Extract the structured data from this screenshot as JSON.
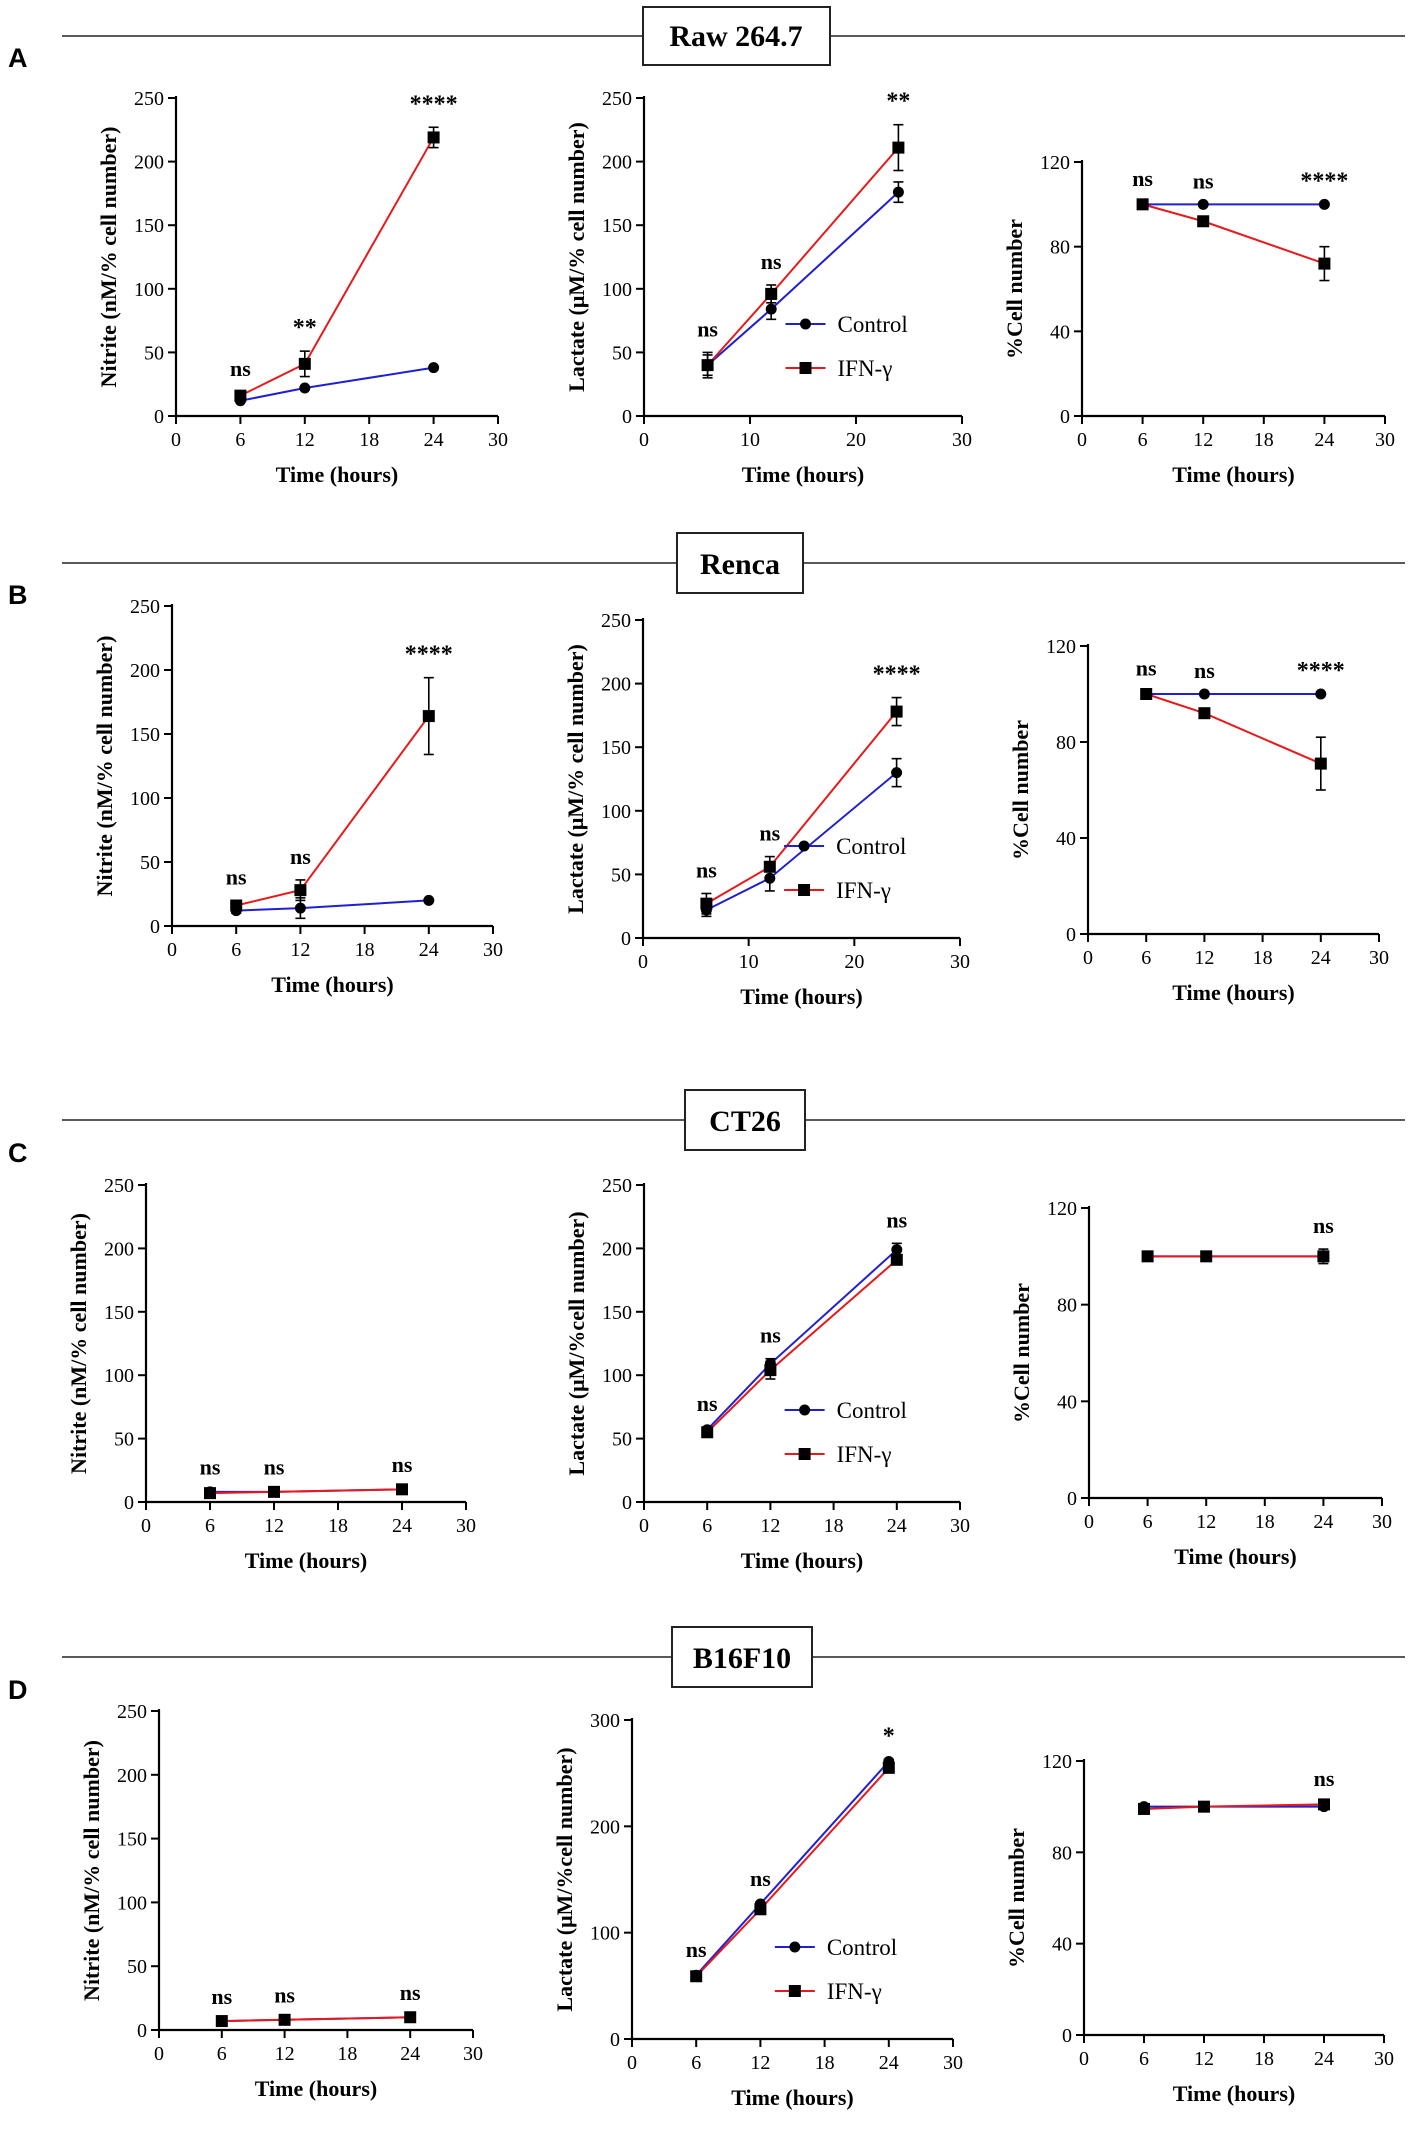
{
  "figure": {
    "colors": {
      "control": "#1f1fd6",
      "ifn": "#e8191b",
      "axis": "#000000"
    },
    "legend": {
      "control": "Control",
      "ifn": "IFN-γ"
    }
  },
  "sections": [
    {
      "letter": "A",
      "title": "Raw 264.7",
      "charts": [
        {
          "chart_data": {
            "type": "line",
            "ylabel": "Nitrite (nM/% cell number)",
            "xlabel": "Time (hours)",
            "xlim": [
              0,
              30
            ],
            "xticks": [
              0,
              6,
              12,
              18,
              24,
              30
            ],
            "ylim": [
              0,
              250
            ],
            "yticks": [
              0,
              50,
              100,
              150,
              200,
              250
            ],
            "x": [
              6,
              12,
              24
            ],
            "series": [
              {
                "name": "Control",
                "values": [
                  12,
                  22,
                  38
                ],
                "err": [
                  1,
                  1,
                  1
                ]
              },
              {
                "name": "IFN-γ",
                "values": [
                  16,
                  41,
                  219
                ],
                "err": [
                  3,
                  10,
                  8
                ]
              }
            ],
            "significance": [
              "ns",
              "**",
              "****"
            ],
            "legend": false
          }
        },
        {
          "chart_data": {
            "type": "line",
            "ylabel": "Lactate (μM/% cell number)",
            "xlabel": "Time (hours)",
            "xlim": [
              0,
              30
            ],
            "xticks": [
              0,
              10,
              20,
              30
            ],
            "ylim": [
              0,
              250
            ],
            "yticks": [
              0,
              50,
              100,
              150,
              200,
              250
            ],
            "x": [
              6,
              12,
              24
            ],
            "series": [
              {
                "name": "Control",
                "values": [
                  40,
                  84,
                  176
                ],
                "err": [
                  8,
                  8,
                  8
                ]
              },
              {
                "name": "IFN-γ",
                "values": [
                  40,
                  96,
                  211
                ],
                "err": [
                  10,
                  7,
                  18
                ]
              }
            ],
            "significance": [
              "ns",
              "ns",
              "**"
            ],
            "legend": true
          }
        },
        {
          "chart_data": {
            "type": "line",
            "ylabel": "%Cell number",
            "xlabel": "Time (hours)",
            "xlim": [
              0,
              30
            ],
            "xticks": [
              0,
              6,
              12,
              18,
              24,
              30
            ],
            "ylim": [
              0,
              120
            ],
            "yticks": [
              0,
              40,
              80,
              120
            ],
            "x": [
              6,
              12,
              24
            ],
            "series": [
              {
                "name": "Control",
                "values": [
                  100,
                  100,
                  100
                ],
                "err": [
                  0,
                  0,
                  0
                ]
              },
              {
                "name": "IFN-γ",
                "values": [
                  100,
                  92,
                  72
                ],
                "err": [
                  1,
                  2,
                  8
                ]
              }
            ],
            "significance": [
              "ns",
              "ns",
              "****"
            ],
            "legend": false
          }
        }
      ]
    },
    {
      "letter": "B",
      "title": "Renca",
      "charts": [
        {
          "chart_data": {
            "type": "line",
            "ylabel": "Nitrite (nM/% cell number)",
            "xlabel": "Time (hours)",
            "xlim": [
              0,
              30
            ],
            "xticks": [
              0,
              6,
              12,
              18,
              24,
              30
            ],
            "ylim": [
              0,
              250
            ],
            "yticks": [
              0,
              50,
              100,
              150,
              200,
              250
            ],
            "x": [
              6,
              12,
              24
            ],
            "series": [
              {
                "name": "Control",
                "values": [
                  12,
                  14,
                  20
                ],
                "err": [
                  2,
                  8,
                  1
                ]
              },
              {
                "name": "IFN-γ",
                "values": [
                  16,
                  28,
                  164
                ],
                "err": [
                  4,
                  8,
                  30
                ]
              }
            ],
            "significance": [
              "ns",
              "ns",
              "****"
            ],
            "legend": false
          }
        },
        {
          "chart_data": {
            "type": "line",
            "ylabel": "Lactate (μM/% cell number)",
            "xlabel": "Time (hours)",
            "xlim": [
              0,
              30
            ],
            "xticks": [
              0,
              10,
              20,
              30
            ],
            "ylim": [
              0,
              250
            ],
            "yticks": [
              0,
              50,
              100,
              150,
              200,
              250
            ],
            "x": [
              6,
              12,
              24
            ],
            "series": [
              {
                "name": "Control",
                "values": [
                  22,
                  47,
                  130
                ],
                "err": [
                  5,
                  10,
                  11
                ]
              },
              {
                "name": "IFN-γ",
                "values": [
                  27,
                  56,
                  178
                ],
                "err": [
                  8,
                  8,
                  11
                ]
              }
            ],
            "significance": [
              "ns",
              "ns",
              "****"
            ],
            "legend": true
          }
        },
        {
          "chart_data": {
            "type": "line",
            "ylabel": "%Cell number",
            "xlabel": "Time (hours)",
            "xlim": [
              0,
              30
            ],
            "xticks": [
              0,
              6,
              12,
              18,
              24,
              30
            ],
            "ylim": [
              0,
              120
            ],
            "yticks": [
              0,
              40,
              80,
              120
            ],
            "x": [
              6,
              12,
              24
            ],
            "series": [
              {
                "name": "Control",
                "values": [
                  100,
                  100,
                  100
                ],
                "err": [
                  0,
                  0,
                  0
                ]
              },
              {
                "name": "IFN-γ",
                "values": [
                  100,
                  92,
                  71
                ],
                "err": [
                  1,
                  2,
                  11
                ]
              }
            ],
            "significance": [
              "ns",
              "ns",
              "****"
            ],
            "legend": false
          }
        }
      ]
    },
    {
      "letter": "C",
      "title": "CT26",
      "charts": [
        {
          "chart_data": {
            "type": "line",
            "ylabel": "Nitrite (nM/% cell number)",
            "xlabel": "Time (hours)",
            "xlim": [
              0,
              30
            ],
            "xticks": [
              0,
              6,
              12,
              18,
              24,
              30
            ],
            "ylim": [
              0,
              250
            ],
            "yticks": [
              0,
              50,
              100,
              150,
              200,
              250
            ],
            "x": [
              6,
              12,
              24
            ],
            "series": [
              {
                "name": "Control",
                "values": [
                  8,
                  8,
                  10
                ],
                "err": [
                  1,
                  1,
                  1
                ]
              },
              {
                "name": "IFN-γ",
                "values": [
                  7,
                  8,
                  10
                ],
                "err": [
                  1,
                  1,
                  1
                ]
              }
            ],
            "significance": [
              "ns",
              "ns",
              "ns"
            ],
            "legend": false
          }
        },
        {
          "chart_data": {
            "type": "line",
            "ylabel": "Lactate (μM/%cell number)",
            "xlabel": "Time (hours)",
            "xlim": [
              0,
              30
            ],
            "xticks": [
              0,
              6,
              12,
              18,
              24,
              30
            ],
            "ylim": [
              0,
              250
            ],
            "yticks": [
              0,
              50,
              100,
              150,
              200,
              250
            ],
            "x": [
              6,
              12,
              24
            ],
            "series": [
              {
                "name": "Control",
                "values": [
                  57,
                  109,
                  199
                ],
                "err": [
                  2,
                  4,
                  5
                ]
              },
              {
                "name": "IFN-γ",
                "values": [
                  55,
                  104,
                  191
                ],
                "err": [
                  2,
                  7,
                  3
                ]
              }
            ],
            "significance": [
              "ns",
              "ns",
              "ns"
            ],
            "legend": true
          }
        },
        {
          "chart_data": {
            "type": "line",
            "ylabel": "%Cell number",
            "xlabel": "Time (hours)",
            "xlim": [
              0,
              30
            ],
            "xticks": [
              0,
              6,
              12,
              18,
              24,
              30
            ],
            "ylim": [
              0,
              120
            ],
            "yticks": [
              0,
              40,
              80,
              120
            ],
            "x": [
              6,
              12,
              24
            ],
            "series": [
              {
                "name": "Control",
                "values": [
                  100,
                  100,
                  100
                ],
                "err": [
                  0,
                  0,
                  0
                ]
              },
              {
                "name": "IFN-γ",
                "values": [
                  100,
                  100,
                  100
                ],
                "err": [
                  1,
                  1,
                  3
                ]
              }
            ],
            "significance": [
              "",
              "",
              "ns"
            ],
            "legend": false
          }
        }
      ]
    },
    {
      "letter": "D",
      "title": "B16F10",
      "charts": [
        {
          "chart_data": {
            "type": "line",
            "ylabel": "Nitrite (nM/% cell number)",
            "xlabel": "Time (hours)",
            "xlim": [
              0,
              30
            ],
            "xticks": [
              0,
              6,
              12,
              18,
              24,
              30
            ],
            "ylim": [
              0,
              250
            ],
            "yticks": [
              0,
              50,
              100,
              150,
              200,
              250
            ],
            "x": [
              6,
              12,
              24
            ],
            "series": [
              {
                "name": "Control",
                "values": [
                  7,
                  8,
                  10
                ],
                "err": [
                  1,
                  1,
                  1
                ]
              },
              {
                "name": "IFN-γ",
                "values": [
                  7,
                  8,
                  10
                ],
                "err": [
                  1,
                  1,
                  1
                ]
              }
            ],
            "significance": [
              "ns",
              "ns",
              "ns"
            ],
            "legend": false
          }
        },
        {
          "chart_data": {
            "type": "line",
            "ylabel": "Lactate (μM/%cell number)",
            "xlabel": "Time (hours)",
            "xlim": [
              0,
              30
            ],
            "xticks": [
              0,
              6,
              12,
              18,
              24,
              30
            ],
            "ylim": [
              0,
              300
            ],
            "yticks": [
              0,
              100,
              200,
              300
            ],
            "x": [
              6,
              12,
              24
            ],
            "series": [
              {
                "name": "Control",
                "values": [
                  60,
                  127,
                  261
                ],
                "err": [
                  2,
                  2,
                  2
                ]
              },
              {
                "name": "IFN-γ",
                "values": [
                  59,
                  122,
                  255
                ],
                "err": [
                  2,
                  3,
                  2
                ]
              }
            ],
            "significance": [
              "ns",
              "ns",
              "*"
            ],
            "legend": true
          }
        },
        {
          "chart_data": {
            "type": "line",
            "ylabel": "%Cell number",
            "xlabel": "Time (hours)",
            "xlim": [
              0,
              30
            ],
            "xticks": [
              0,
              6,
              12,
              18,
              24,
              30
            ],
            "ylim": [
              0,
              120
            ],
            "yticks": [
              0,
              40,
              80,
              120
            ],
            "x": [
              6,
              12,
              24
            ],
            "series": [
              {
                "name": "Control",
                "values": [
                  100,
                  100,
                  100
                ],
                "err": [
                  0,
                  0,
                  0
                ]
              },
              {
                "name": "IFN-γ",
                "values": [
                  99,
                  100,
                  101
                ],
                "err": [
                  1,
                  1,
                  1
                ]
              }
            ],
            "significance": [
              "",
              "",
              "ns"
            ],
            "legend": false
          }
        }
      ]
    }
  ]
}
